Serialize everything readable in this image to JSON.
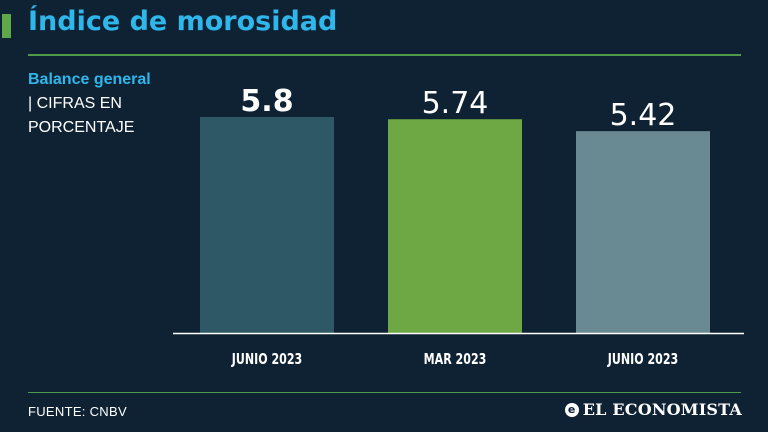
{
  "header": {
    "title": "Índice de morosidad"
  },
  "subtitle": {
    "bold": "Balance general",
    "separator": "|",
    "light": "CIFRAS EN PORCENTAJE"
  },
  "footer": {
    "source": "FUENTE: CNBV",
    "brand": "EL ECONOMISTA"
  },
  "colors": {
    "background": "#0f2234",
    "title": "#2fb6ea",
    "rule": "#4f9a4a",
    "accent": "#5fa84a",
    "axis": "#ffffff",
    "text": "#ffffff"
  },
  "chart_data": {
    "type": "bar",
    "title": "Índice de morosidad",
    "categories": [
      "JUNIO 2023",
      "MAR 2023",
      "JUNIO 2023"
    ],
    "values": [
      5.8,
      5.74,
      5.42
    ],
    "value_labels": [
      "5.8",
      "5.74",
      "5.42"
    ],
    "bar_colors": [
      "#2e5866",
      "#6ea844",
      "#6a8a93"
    ],
    "highlight_first_label": true,
    "ylim": [
      0,
      5.8
    ],
    "grid": false,
    "legend": "none",
    "xlabel": "",
    "ylabel": ""
  }
}
